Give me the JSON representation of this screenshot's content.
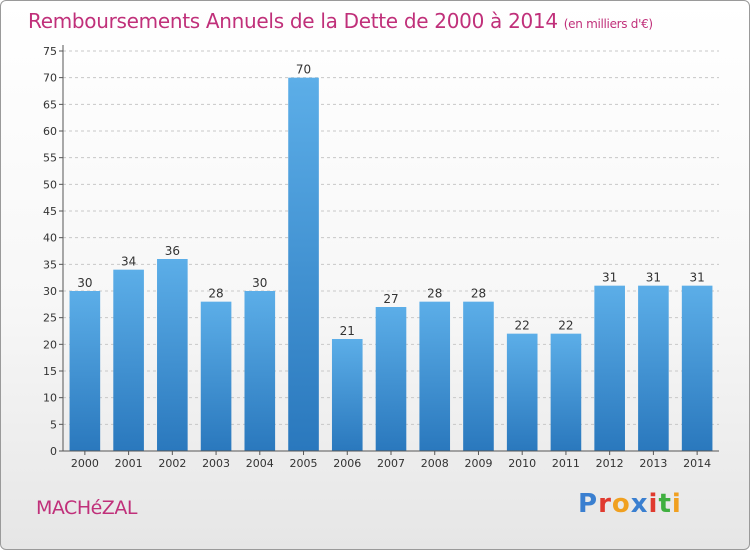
{
  "header": {
    "title": "Remboursements Annuels de la Dette de 2000 à 2014",
    "unit": "(en milliers d'€)"
  },
  "footer": {
    "town": "MACHéZAL",
    "logo": "Proxiti",
    "logo_colors": [
      "#3a7fd0",
      "#e03a2f",
      "#f0a020",
      "#3a7fd0",
      "#e03a2f",
      "#40b040",
      "#f0a020"
    ]
  },
  "colors": {
    "bar_top": "#5caee8",
    "bar_bottom": "#2a78bd",
    "title": "#c0307a"
  },
  "chart_data": {
    "type": "bar",
    "title": "Remboursements Annuels de la Dette de 2000 à 2014",
    "xlabel": "",
    "ylabel": "",
    "ylim": [
      0,
      75
    ],
    "yticks": [
      0,
      5,
      10,
      15,
      20,
      25,
      30,
      35,
      40,
      45,
      50,
      55,
      60,
      65,
      70,
      75
    ],
    "grid": true,
    "categories": [
      "2000",
      "2001",
      "2002",
      "2003",
      "2004",
      "2005",
      "2006",
      "2007",
      "2008",
      "2009",
      "2010",
      "2011",
      "2012",
      "2013",
      "2014"
    ],
    "values": [
      30,
      34,
      36,
      28,
      30,
      70,
      21,
      27,
      28,
      28,
      22,
      22,
      31,
      31,
      31
    ]
  }
}
